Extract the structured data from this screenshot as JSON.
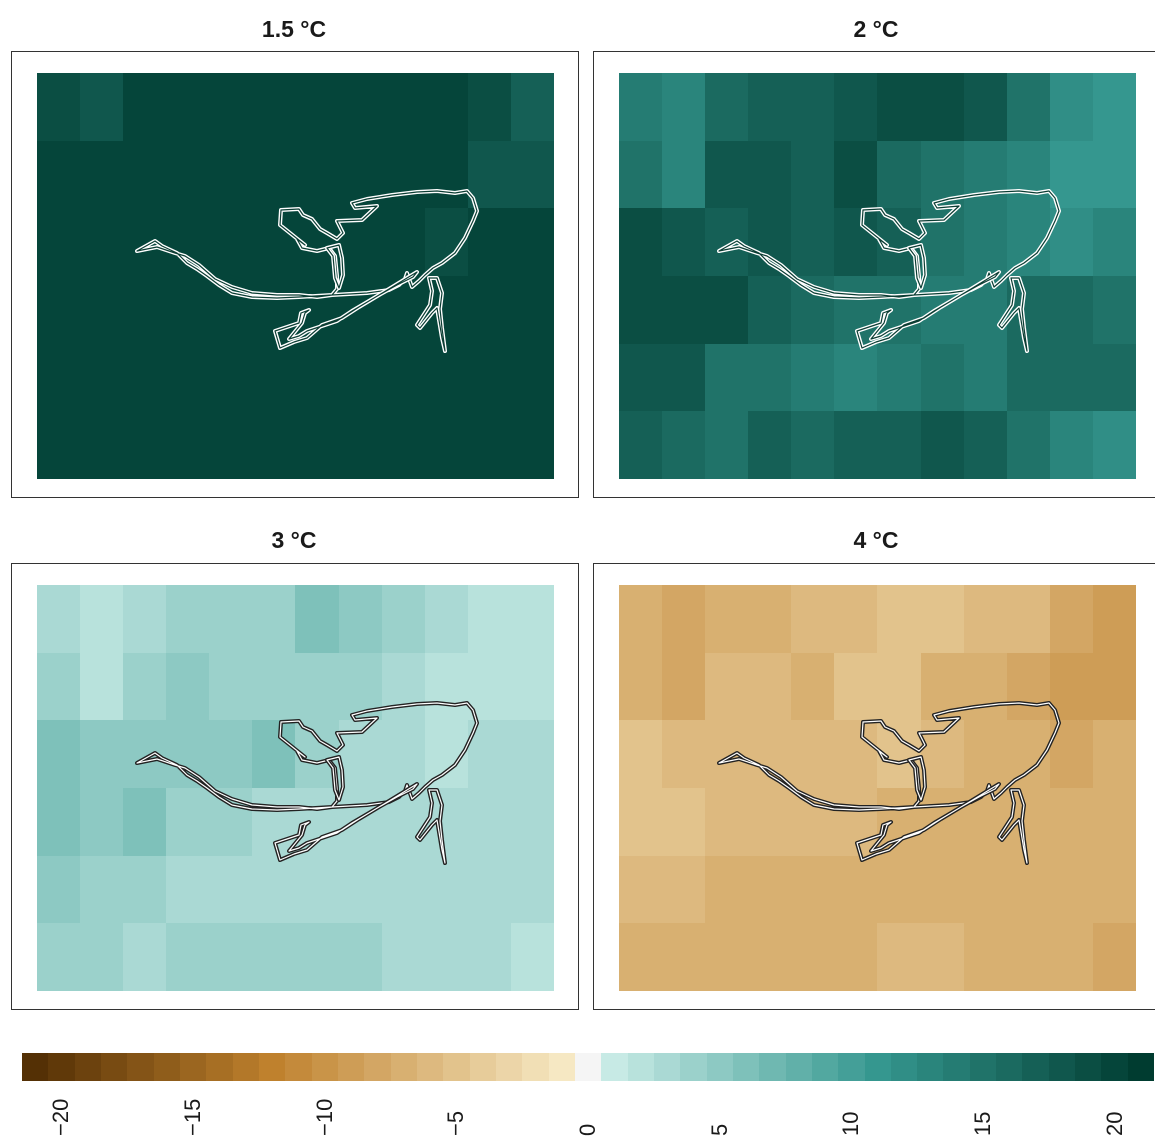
{
  "panels": [
    {
      "title": "1.5 °C",
      "outline_color": "#ffffff",
      "grid": [
        [
          19,
          18,
          20,
          20,
          20,
          20,
          20,
          20,
          20,
          20,
          19,
          17
        ],
        [
          20,
          20,
          20,
          20,
          20,
          20,
          20,
          20,
          20,
          20,
          18,
          18
        ],
        [
          20,
          20,
          20,
          20,
          20,
          20,
          20,
          20,
          20,
          19,
          20,
          20
        ],
        [
          20,
          20,
          20,
          20,
          20,
          20,
          20,
          20,
          20,
          20,
          20,
          20
        ],
        [
          20,
          20,
          20,
          20,
          20,
          20,
          20,
          20,
          20,
          20,
          20,
          20
        ],
        [
          20,
          20,
          20,
          20,
          20,
          20,
          20,
          20,
          20,
          20,
          20,
          20
        ]
      ]
    },
    {
      "title": "2 °C",
      "outline_color": "#ffffff",
      "grid": [
        [
          14,
          13,
          16,
          17,
          17,
          18,
          19,
          19,
          18,
          15,
          12,
          11
        ],
        [
          15,
          13,
          18,
          18,
          17,
          19,
          16,
          15,
          14,
          13,
          11,
          11
        ],
        [
          19,
          18,
          17,
          18,
          17,
          18,
          17,
          15,
          14,
          13,
          12,
          13
        ],
        [
          19,
          19,
          19,
          17,
          16,
          15,
          15,
          14,
          14,
          16,
          16,
          15
        ],
        [
          18,
          18,
          15,
          15,
          14,
          13,
          14,
          15,
          14,
          16,
          16,
          16
        ],
        [
          17,
          16,
          15,
          17,
          16,
          17,
          17,
          18,
          17,
          15,
          13,
          12
        ]
      ]
    },
    {
      "title": "3 °C",
      "outline_color": "#222222",
      "grid": [
        [
          3,
          2,
          3,
          4,
          4,
          4,
          6,
          5,
          4,
          3,
          2,
          2
        ],
        [
          4,
          2,
          4,
          5,
          4,
          4,
          4,
          4,
          3,
          2,
          2,
          2
        ],
        [
          6,
          5,
          5,
          5,
          5,
          6,
          4,
          3,
          3,
          2,
          3,
          3
        ],
        [
          6,
          5,
          6,
          4,
          4,
          3,
          3,
          3,
          3,
          3,
          3,
          3
        ],
        [
          5,
          4,
          4,
          3,
          3,
          3,
          3,
          3,
          3,
          3,
          3,
          3
        ],
        [
          4,
          4,
          3,
          4,
          4,
          4,
          4,
          4,
          3,
          3,
          3,
          2
        ]
      ]
    },
    {
      "title": "4 °C",
      "outline_color": "#222222",
      "grid": [
        [
          -7,
          -8,
          -7,
          -7,
          -6,
          -6,
          -5,
          -5,
          -6,
          -6,
          -8,
          -9
        ],
        [
          -7,
          -8,
          -6,
          -6,
          -7,
          -5,
          -5,
          -7,
          -7,
          -8,
          -9,
          -9
        ],
        [
          -5,
          -6,
          -6,
          -6,
          -6,
          -6,
          -5,
          -6,
          -7,
          -7,
          -8,
          -7
        ],
        [
          -5,
          -5,
          -6,
          -6,
          -6,
          -6,
          -7,
          -7,
          -7,
          -7,
          -7,
          -7
        ],
        [
          -6,
          -6,
          -7,
          -7,
          -7,
          -7,
          -7,
          -7,
          -7,
          -7,
          -7,
          -7
        ],
        [
          -7,
          -7,
          -7,
          -7,
          -7,
          -7,
          -6,
          -6,
          -7,
          -7,
          -7,
          -8
        ]
      ]
    }
  ],
  "legend": {
    "ticks": [
      "−20",
      "−15",
      "−10",
      "−5",
      "0",
      "5",
      "10",
      "15",
      "20"
    ],
    "tick_values": [
      -20,
      -15,
      -10,
      -5,
      0,
      5,
      10,
      15,
      20
    ],
    "min": -21.5,
    "max": 21.5,
    "bin_width": 1,
    "colors": {
      "low": "#543005",
      "mid_low": "#bf812d",
      "pale_low": "#f6e8c3",
      "center": "#f5f5f5",
      "pale_high": "#c7eae5",
      "mid_high": "#35978f",
      "high": "#003c30"
    }
  }
}
